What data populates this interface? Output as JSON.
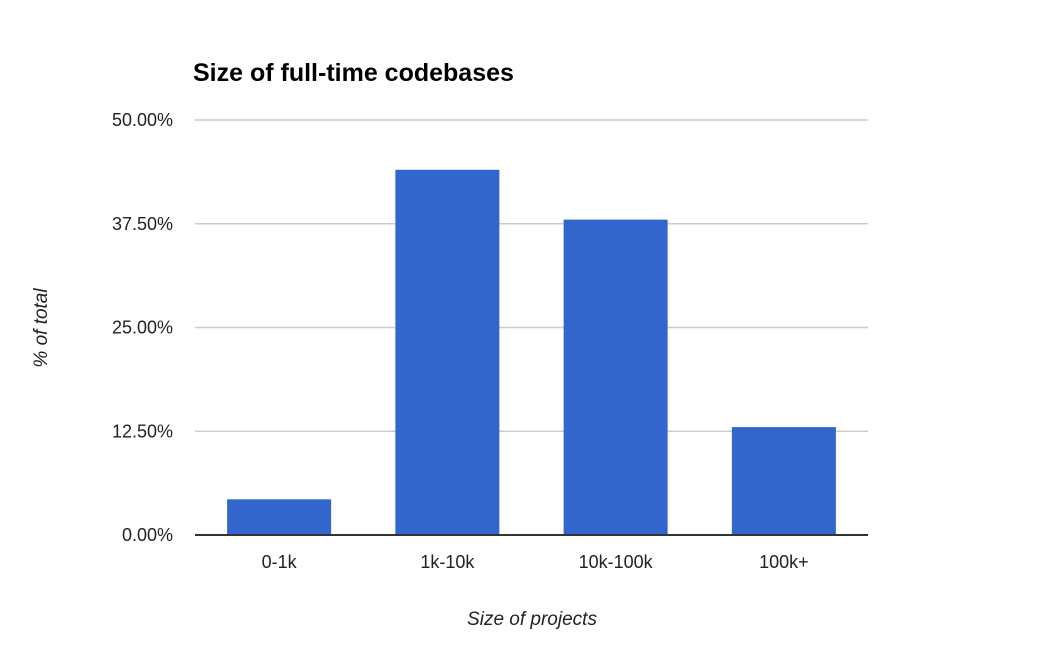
{
  "chart_data": {
    "type": "bar",
    "title": "Size of full-time codebases",
    "xlabel": "Size of projects",
    "ylabel": "% of total",
    "categories": [
      "0-1k",
      "1k-10k",
      "10k-100k",
      "100k+"
    ],
    "values": [
      4.3,
      44.0,
      38.0,
      13.0
    ],
    "value_unit": "%",
    "ylim": [
      0,
      50
    ],
    "yticks": [
      0,
      12.5,
      25,
      37.5,
      50
    ],
    "ytick_labels": [
      "0.00%",
      "12.50%",
      "25.00%",
      "37.50%",
      "50.00%"
    ],
    "grid": true,
    "legend": "none",
    "colors": {
      "bar": "#3366cc",
      "grid": "#cccccc",
      "axis": "#333333",
      "title": "#000000",
      "text": "#222222"
    }
  }
}
